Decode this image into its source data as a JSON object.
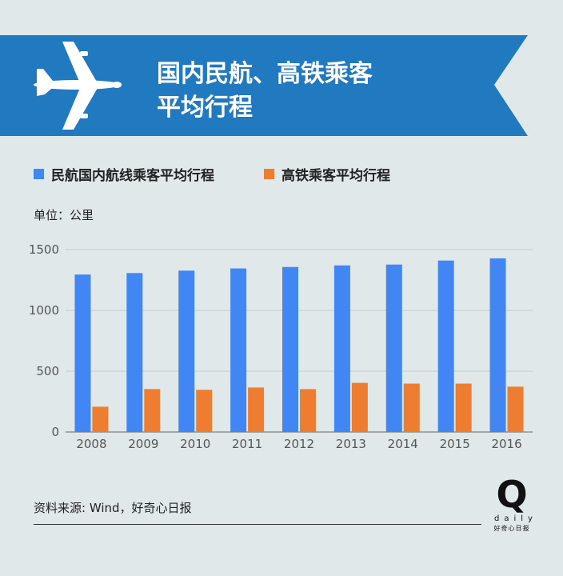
{
  "header": {
    "title_line1": "国内民航、高铁乘客",
    "title_line2": "平均行程",
    "icon": "airplane-icon",
    "banner_color": "#2179c0"
  },
  "legend": {
    "items": [
      {
        "label": "民航国内航线乘客平均行程",
        "color": "#4286f4"
      },
      {
        "label": "高铁乘客平均行程",
        "color": "#ef7d31"
      }
    ]
  },
  "unit_label": "单位：公里",
  "source_text": "资料来源: Wind，好奇心日报",
  "logo": {
    "letter": "Q",
    "word": "daily",
    "cn": "好奇心日报"
  },
  "chart_data": {
    "type": "bar",
    "categories": [
      "2008",
      "2009",
      "2010",
      "2011",
      "2012",
      "2013",
      "2014",
      "2015",
      "2016"
    ],
    "series": [
      {
        "name": "民航国内航线乘客平均行程",
        "color": "#4286f4",
        "values": [
          1295,
          1307,
          1327,
          1345,
          1357,
          1370,
          1377,
          1410,
          1428
        ]
      },
      {
        "name": "高铁乘客平均行程",
        "color": "#ef7d31",
        "values": [
          208,
          353,
          347,
          366,
          353,
          404,
          398,
          398,
          373
        ]
      }
    ],
    "ylim": [
      0,
      1500
    ],
    "yticks": [
      "0",
      "500",
      "1000",
      "1500"
    ],
    "grid": true
  }
}
